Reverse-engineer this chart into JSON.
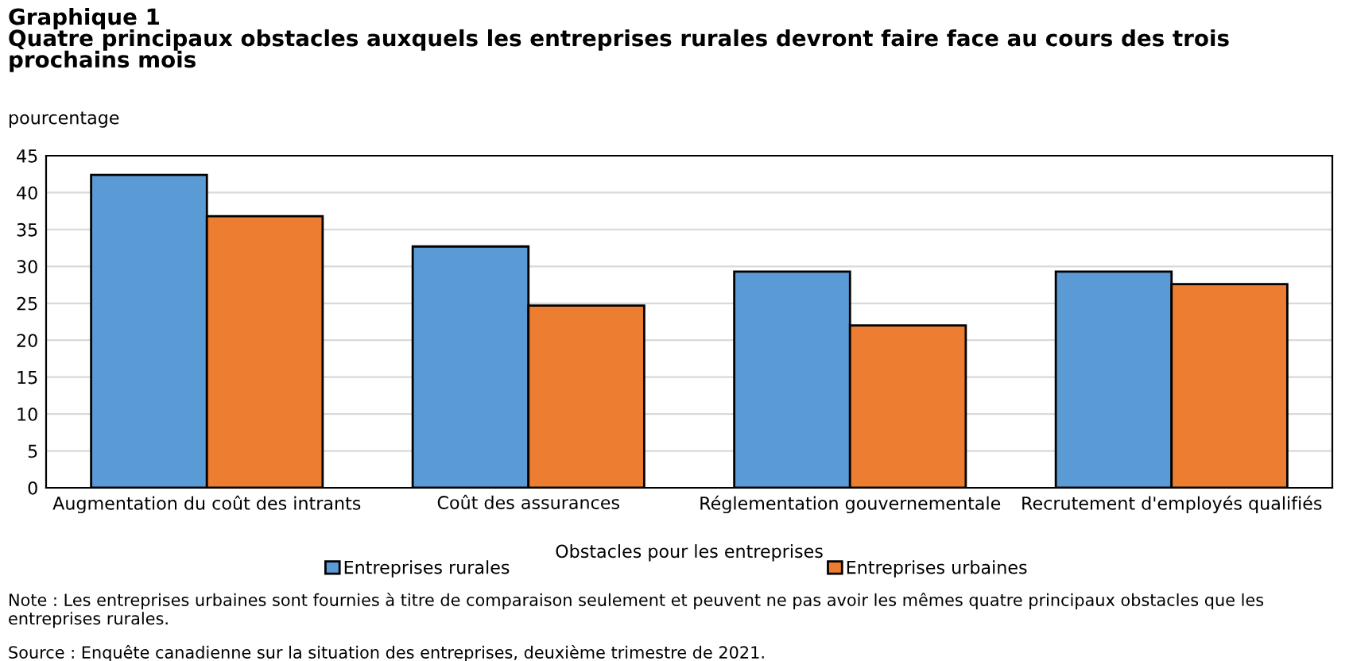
{
  "chart_data": {
    "type": "bar",
    "title": "Graphique 1\nQuatre principaux obstacles auxquels les entreprises rurales devront faire face au cours des trois\nprochains mois",
    "ylabel": "pourcentage",
    "xlabel": "Obstacles pour les entreprises",
    "categories": [
      "Augmentation du coût des intrants",
      "Coût des assurances",
      "Réglementation gouvernementale",
      "Recrutement d'employés qualifiés"
    ],
    "series": [
      {
        "name": "Entreprises rurales",
        "color": "#5b9bd5",
        "values": [
          42.4,
          32.7,
          29.3,
          29.3
        ]
      },
      {
        "name": "Entreprises urbaines",
        "color": "#ed7d31",
        "values": [
          36.8,
          24.7,
          22.0,
          27.6
        ]
      }
    ],
    "ylim": [
      0,
      45
    ],
    "yticks": [
      0,
      5,
      10,
      15,
      20,
      25,
      30,
      35,
      40,
      45
    ],
    "grid": "y",
    "legend": "bottom",
    "annotations": [
      "Note : Les entreprises urbaines sont fournies à titre de comparaison seulement et peuvent ne pas avoir les mêmes quatre principaux obstacles que les entreprises rurales.",
      "Source : Enquête canadienne sur la situation des entreprises, deuxième trimestre de 2021."
    ]
  }
}
